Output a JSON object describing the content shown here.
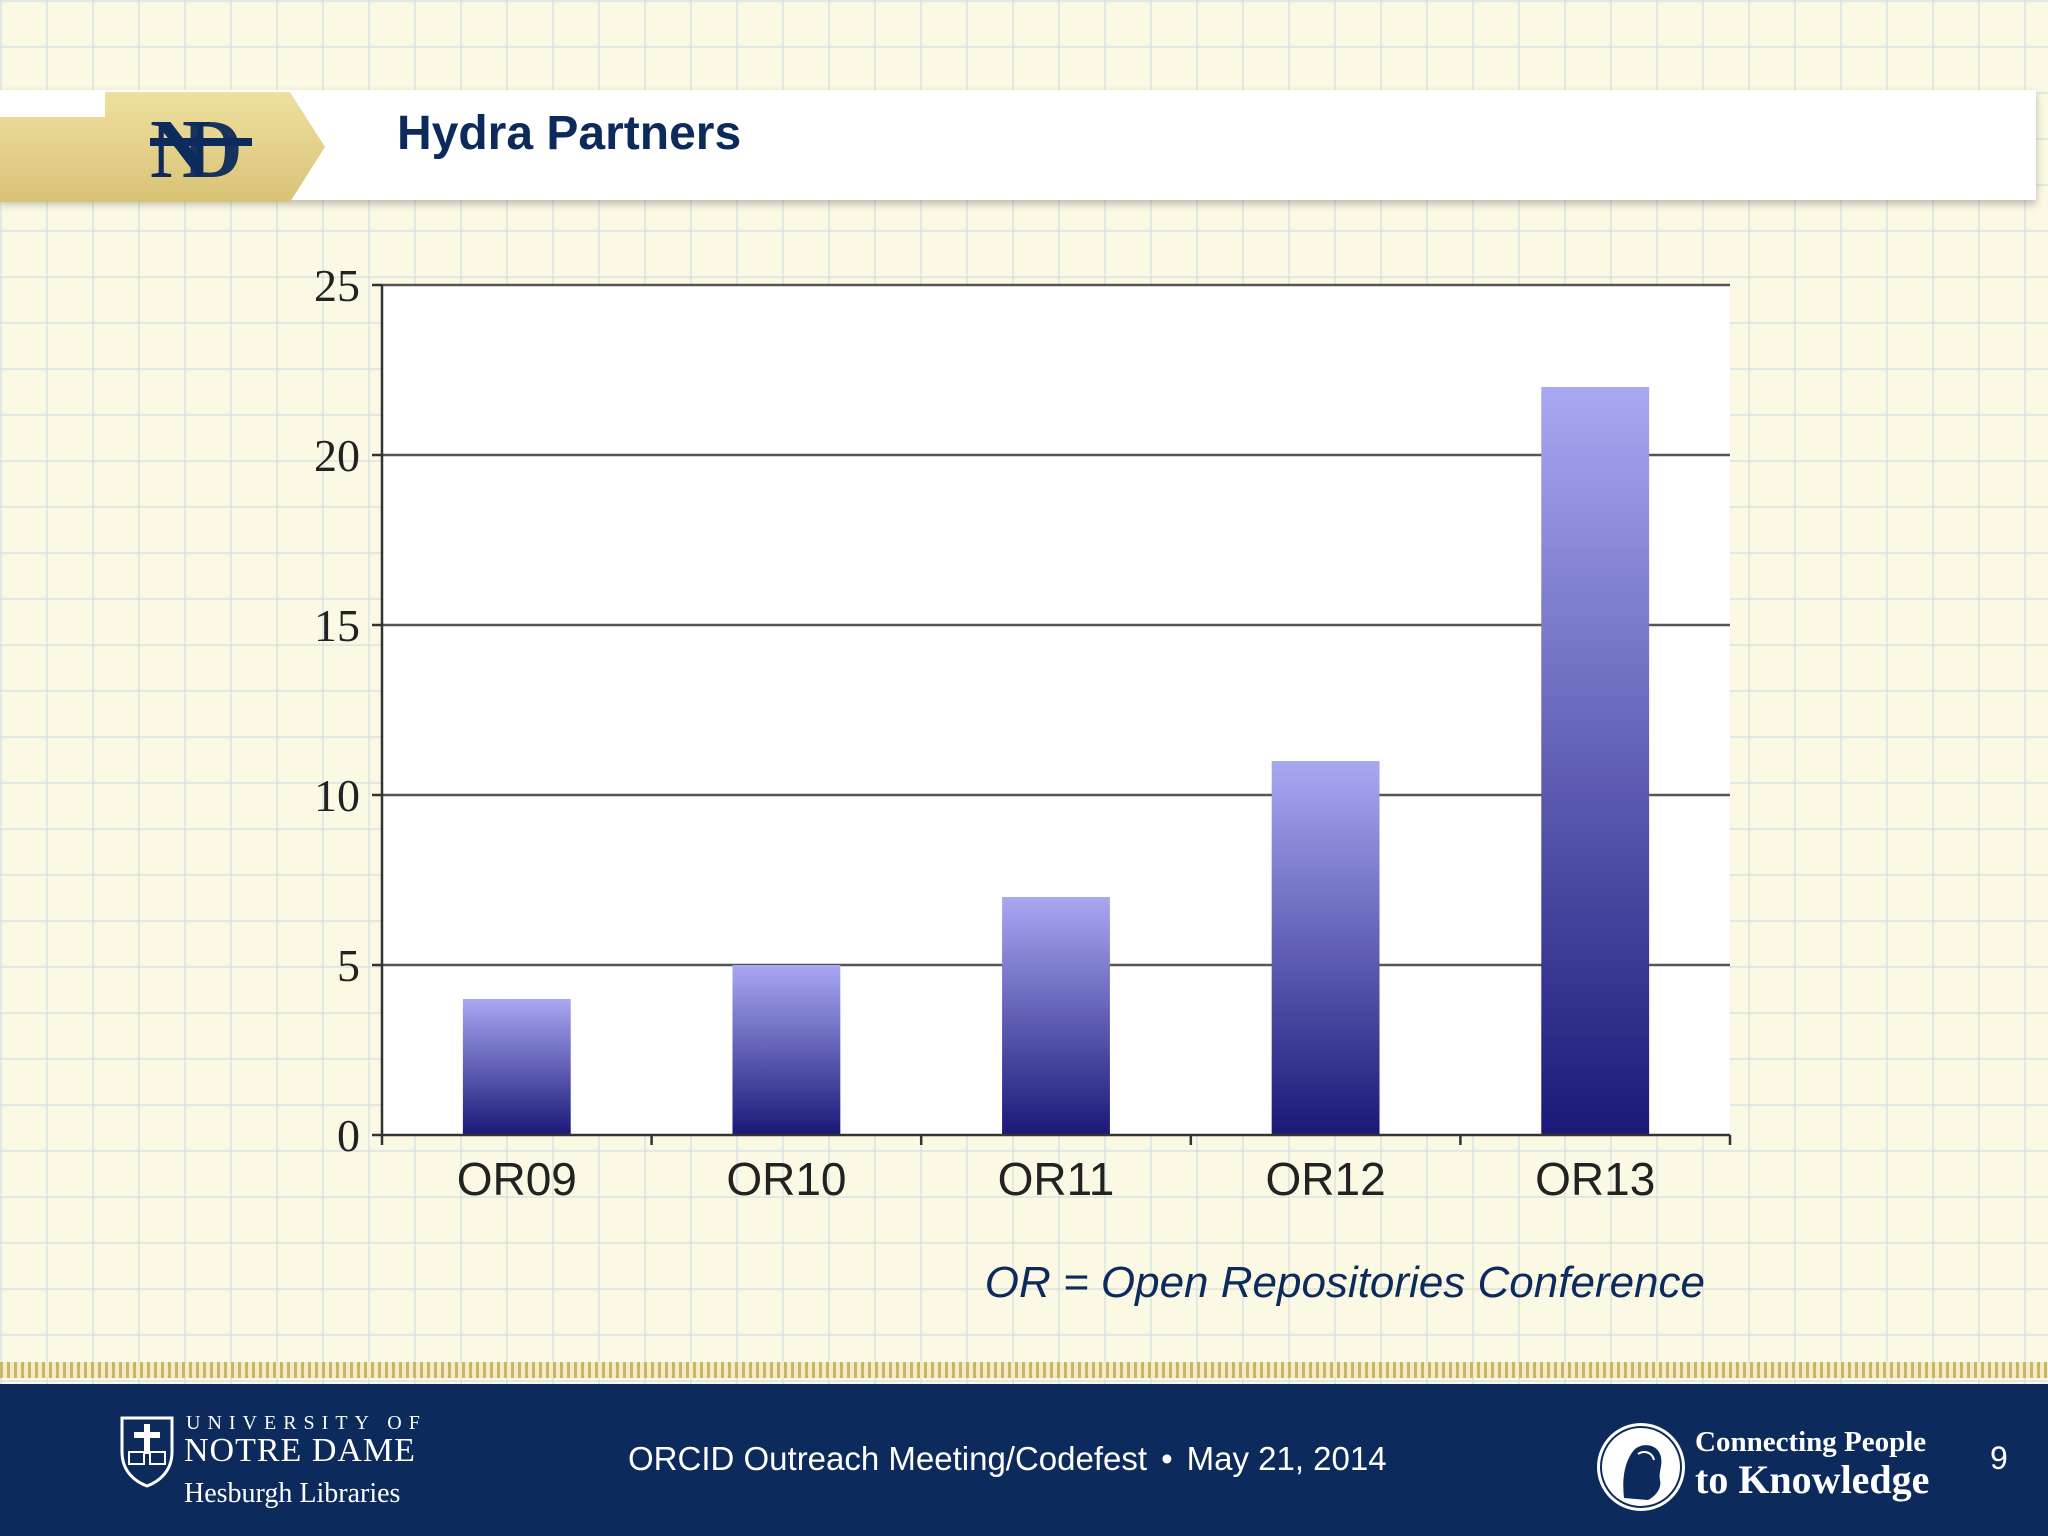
{
  "slide": {
    "title": "Hydra Partners",
    "logo_icon": "nd-monogram-icon",
    "caption": "OR = Open Repositories Conference"
  },
  "chart_data": {
    "type": "bar",
    "title": "",
    "xlabel": "",
    "ylabel": "",
    "categories": [
      "OR09",
      "OR10",
      "OR11",
      "OR12",
      "OR13"
    ],
    "values": [
      4,
      5,
      7,
      11,
      22
    ],
    "ylim": [
      0,
      25
    ],
    "yticks": [
      0,
      5,
      10,
      15,
      20,
      25
    ],
    "grid": "horizontal",
    "bar_color_top": "#a8a8f2",
    "bar_color_bottom": "#1a1878"
  },
  "footer": {
    "university_line1": "UNIVERSITY OF",
    "university_line2": "NOTRE DAME",
    "university_line3": "Hesburgh Libraries",
    "event": "ORCID Outreach Meeting/Codefest",
    "separator": "•",
    "date": "May 21, 2014",
    "tagline_line1": "Connecting People",
    "tagline_line2": "to Knowledge",
    "page_number": "9",
    "seal_icon": "nd-seal-icon",
    "emblem_icon": "hesburgh-portrait-icon"
  },
  "colors": {
    "navy": "#0c2a5b",
    "gold": "#e6d48c",
    "background": "#fbf8e3"
  }
}
